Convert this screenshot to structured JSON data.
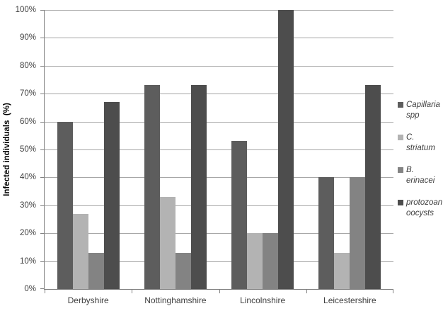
{
  "chart_data": {
    "type": "bar",
    "title": "",
    "ylabel": "Infected individuals  (%)",
    "xlabel": "",
    "ylim": [
      0,
      100
    ],
    "ytick_step": 10,
    "ytick_labels": [
      "0%",
      "10%",
      "20%",
      "30%",
      "40%",
      "50%",
      "60%",
      "70%",
      "80%",
      "90%",
      "100%"
    ],
    "categories": [
      "Derbyshire",
      "Nottinghamshire",
      "Lincolnshire",
      "Leicestershire"
    ],
    "series": [
      {
        "name": "Capillaria spp",
        "color": "#5d5d5d",
        "values": [
          60,
          73,
          53,
          40
        ]
      },
      {
        "name": "C. striatum",
        "color": "#b3b3b3",
        "values": [
          27,
          33,
          20,
          13
        ]
      },
      {
        "name": "B. erinacei",
        "color": "#838383",
        "values": [
          13,
          13,
          20,
          40
        ]
      },
      {
        "name": "protozoan oocysts",
        "color": "#4d4d4d",
        "values": [
          67,
          73,
          100,
          73
        ]
      }
    ],
    "legend_position": "right",
    "grid": "horizontal",
    "axis_color": "#808080",
    "gridline_color": "#a6a6a6",
    "text_color": "#3f3f3f"
  }
}
